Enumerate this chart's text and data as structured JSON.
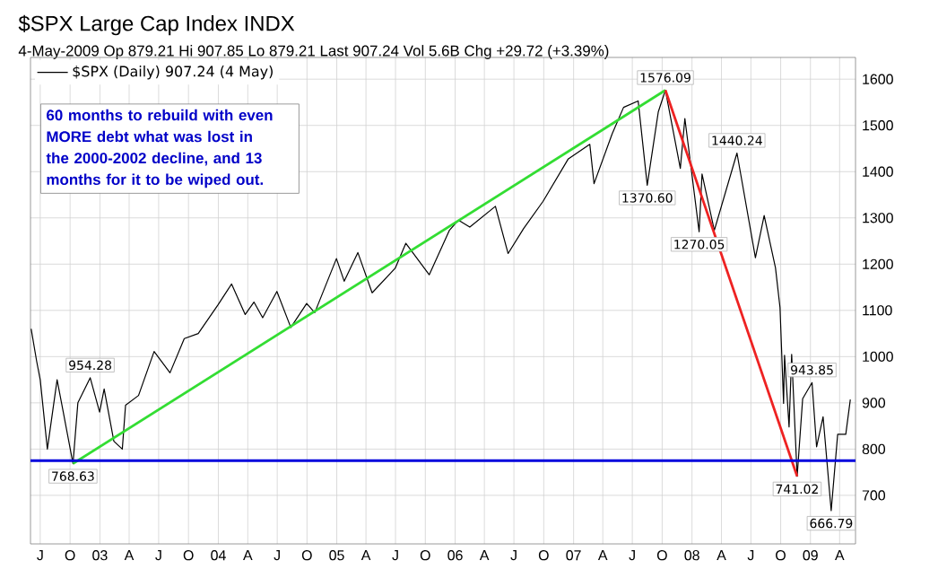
{
  "chart_data": {
    "type": "line",
    "title": "$SPX Large Cap Index INDX",
    "subtitle": "4-May-2009  Op 879.21  Hi 907.85  Lo 879.21  Last 907.24  Vol 5.6B  Chg +29.72 (+3.39%)",
    "annotations": [
      "60 months to rebuild with even MORE debt what was lost in the 2000-2002 decline,  and 13 months for it to be wiped out.",
      {
        "text": "954.28",
        "x": "2002-12-02",
        "y": 954.28
      },
      {
        "text": "768.63",
        "x": "2002-10-10",
        "y": 768.63
      },
      {
        "text": "1576.09",
        "x": "2007-10-11",
        "y": 1576.09
      },
      {
        "text": "1370.60",
        "x": "2007-08-16",
        "y": 1370.6
      },
      {
        "text": "1440.24",
        "x": "2008-05-19",
        "y": 1440.24
      },
      {
        "text": "1270.05",
        "x": "2008-01-23",
        "y": 1270.05
      },
      {
        "text": "943.85",
        "x": "2009-01-06",
        "y": 943.85
      },
      {
        "text": "741.02",
        "x": "2008-11-21",
        "y": 741.02
      },
      {
        "text": "666.79",
        "x": "2009-03-06",
        "y": 666.79
      }
    ],
    "series": [
      {
        "name": "$SPX (Daily) 907.24 (4 May)",
        "color": "#000000",
        "x": [
          "2002-06-03",
          "2002-06-20",
          "2002-07-01",
          "2002-07-23",
          "2002-08-22",
          "2002-09-10",
          "2002-10-10",
          "2002-10-25",
          "2002-12-02",
          "2002-12-31",
          "2003-01-14",
          "2003-02-13",
          "2003-03-11",
          "2003-03-21",
          "2003-04-30",
          "2003-06-17",
          "2003-08-05",
          "2003-09-18",
          "2003-10-31",
          "2003-12-31",
          "2004-02-11",
          "2004-03-24",
          "2004-04-20",
          "2004-05-17",
          "2004-06-30",
          "2004-08-12",
          "2004-09-30",
          "2004-10-25",
          "2004-12-31",
          "2005-01-24",
          "2005-03-07",
          "2005-04-20",
          "2005-06-30",
          "2005-08-02",
          "2005-10-13",
          "2005-12-14",
          "2006-01-11",
          "2006-02-15",
          "2006-05-05",
          "2006-06-13",
          "2006-07-31",
          "2006-09-29",
          "2006-12-15",
          "2007-02-20",
          "2007-03-05",
          "2007-04-30",
          "2007-06-04",
          "2007-07-19",
          "2007-08-16",
          "2007-09-19",
          "2007-10-11",
          "2007-11-26",
          "2007-12-10",
          "2008-01-23",
          "2008-02-01",
          "2008-03-10",
          "2008-05-19",
          "2008-07-15",
          "2008-08-11",
          "2008-09-15",
          "2008-09-29",
          "2008-10-10",
          "2008-10-13",
          "2008-10-27",
          "2008-11-04",
          "2008-11-21",
          "2008-12-08",
          "2009-01-06",
          "2009-01-20",
          "2009-02-09",
          "2009-03-06",
          "2009-03-26",
          "2009-04-20",
          "2009-05-04"
        ],
        "values": [
          1060,
          990,
          950,
          800,
          950,
          880,
          768.63,
          900,
          954.28,
          880,
          930,
          817,
          800,
          895,
          916,
          1011,
          965,
          1039,
          1050,
          1112,
          1157,
          1091,
          1118,
          1084,
          1141,
          1063,
          1115,
          1095,
          1212,
          1163,
          1225,
          1138,
          1191,
          1245,
          1177,
          1273,
          1295,
          1280,
          1325,
          1223,
          1277,
          1336,
          1427,
          1459,
          1374,
          1482,
          1539,
          1553,
          1370.6,
          1529,
          1576.09,
          1407,
          1515,
          1270.05,
          1395,
          1273,
          1440.24,
          1214,
          1305,
          1192,
          1106,
          899,
          1003,
          848,
          1005,
          741.02,
          909,
          943.85,
          805,
          870,
          666.79,
          832,
          832,
          907.24
        ]
      },
      {
        "type": "line",
        "color": "#33dd33",
        "x": [
          "2002-10-10",
          "2007-10-11"
        ],
        "values": [
          768.63,
          1576.09
        ]
      },
      {
        "type": "line",
        "color": "#ee2222",
        "x": [
          "2007-10-11",
          "2008-11-21"
        ],
        "values": [
          1576.09,
          741.02
        ]
      }
    ],
    "ref_lines": [
      {
        "axis": "y",
        "value": 775,
        "color": "#0000dd"
      }
    ],
    "xlim": [
      "2002-06-01",
      "2009-05-20"
    ],
    "xticks": [
      {
        "value": "2002-07-01",
        "label": "J"
      },
      {
        "value": "2002-10-01",
        "label": "O"
      },
      {
        "value": "2003-01-01",
        "label": "03"
      },
      {
        "value": "2003-04-01",
        "label": "A"
      },
      {
        "value": "2003-07-01",
        "label": "J"
      },
      {
        "value": "2003-10-01",
        "label": "O"
      },
      {
        "value": "2004-01-01",
        "label": "04"
      },
      {
        "value": "2004-04-01",
        "label": "A"
      },
      {
        "value": "2004-07-01",
        "label": "J"
      },
      {
        "value": "2004-10-01",
        "label": "O"
      },
      {
        "value": "2005-01-01",
        "label": "05"
      },
      {
        "value": "2005-04-01",
        "label": "A"
      },
      {
        "value": "2005-07-01",
        "label": "J"
      },
      {
        "value": "2005-10-01",
        "label": "O"
      },
      {
        "value": "2006-01-01",
        "label": "06"
      },
      {
        "value": "2006-04-01",
        "label": "A"
      },
      {
        "value": "2006-07-01",
        "label": "J"
      },
      {
        "value": "2006-10-01",
        "label": "O"
      },
      {
        "value": "2007-01-01",
        "label": "07"
      },
      {
        "value": "2007-04-01",
        "label": "A"
      },
      {
        "value": "2007-07-01",
        "label": "J"
      },
      {
        "value": "2007-10-01",
        "label": "O"
      },
      {
        "value": "2008-01-01",
        "label": "08"
      },
      {
        "value": "2008-04-01",
        "label": "A"
      },
      {
        "value": "2008-07-01",
        "label": "J"
      },
      {
        "value": "2008-10-01",
        "label": "O"
      },
      {
        "value": "2009-01-01",
        "label": "09"
      },
      {
        "value": "2009-04-01",
        "label": "A"
      }
    ],
    "ylim": [
      595,
      1647
    ],
    "yticks": [
      700,
      800,
      900,
      1000,
      1100,
      1200,
      1300,
      1400,
      1500,
      1600
    ],
    "grid": true,
    "legend": "top left",
    "marker": "none",
    "line_style": "solid"
  }
}
